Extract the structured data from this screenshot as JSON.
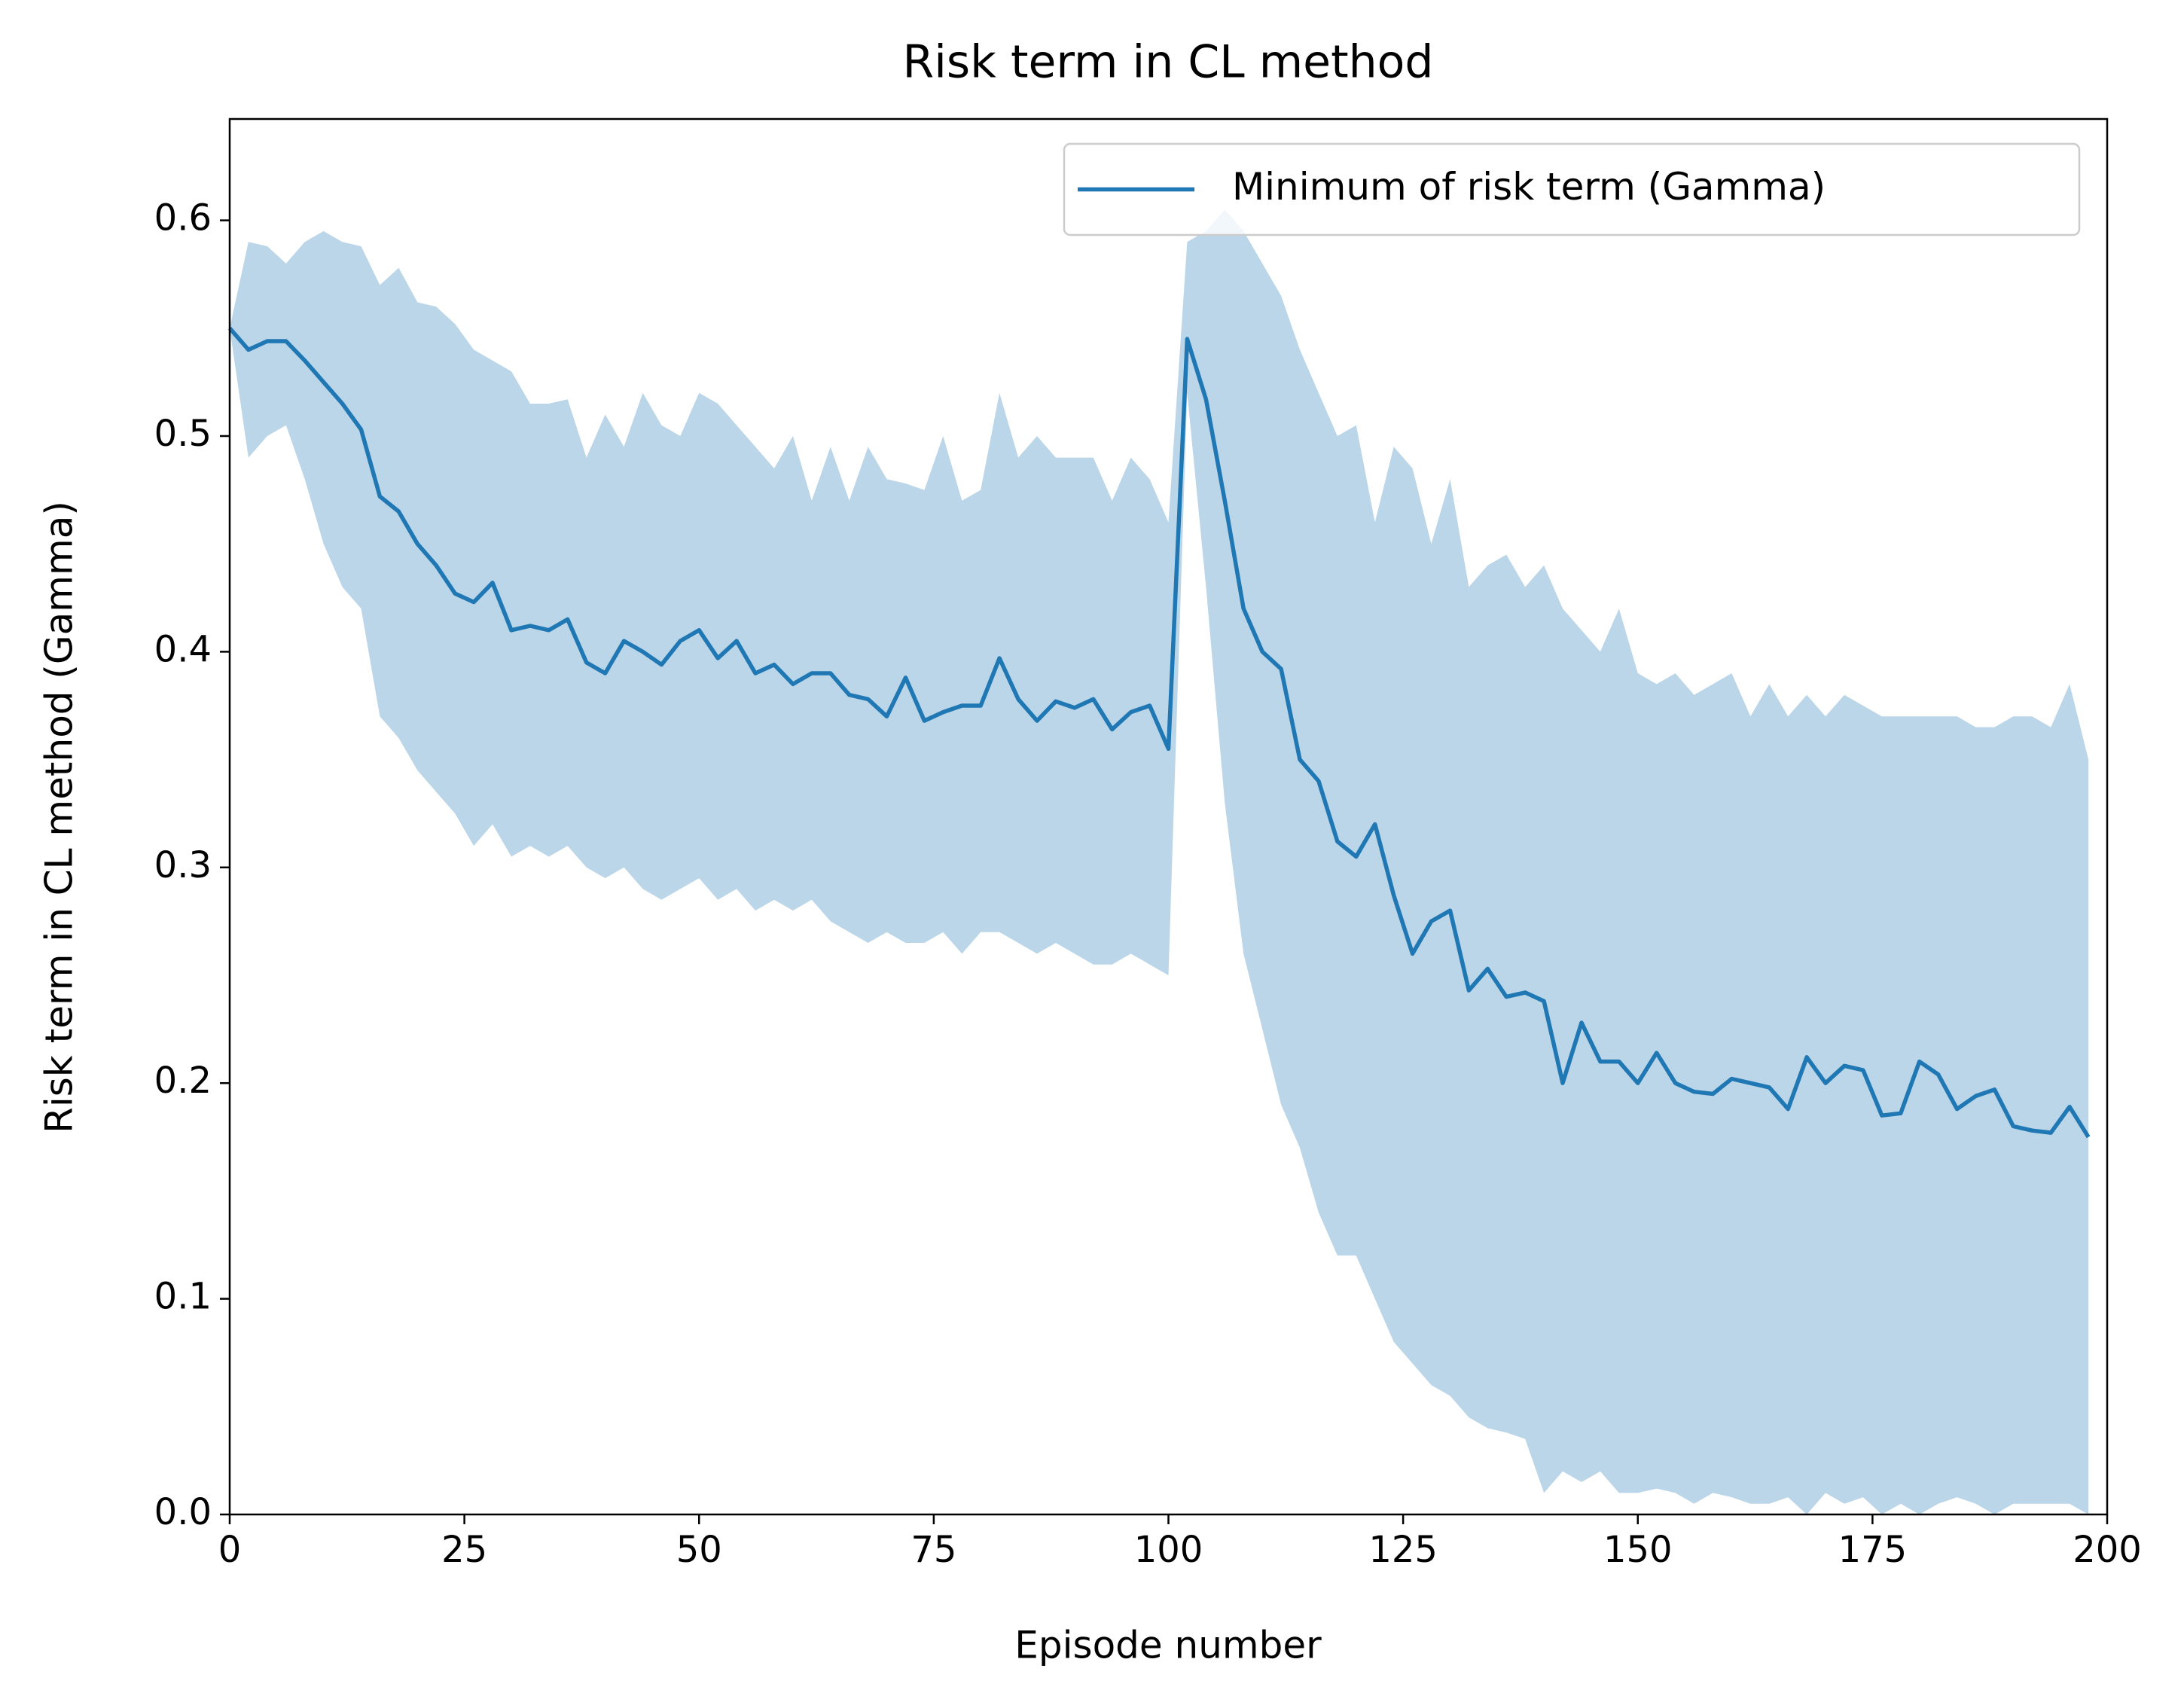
{
  "chart_data": {
    "type": "line",
    "title": "Risk term in CL method",
    "x_label": "Episode number",
    "y_label": "Risk term in CL method (Gamma)",
    "x": [
      0,
      2,
      4,
      6,
      8,
      10,
      12,
      14,
      16,
      18,
      20,
      22,
      24,
      26,
      28,
      30,
      32,
      34,
      36,
      38,
      40,
      42,
      44,
      46,
      48,
      50,
      52,
      54,
      56,
      58,
      60,
      62,
      64,
      66,
      68,
      70,
      72,
      74,
      76,
      78,
      80,
      82,
      84,
      86,
      88,
      90,
      92,
      94,
      96,
      98,
      100,
      102,
      104,
      106,
      108,
      110,
      112,
      114,
      116,
      118,
      120,
      122,
      124,
      126,
      128,
      130,
      132,
      134,
      136,
      138,
      140,
      142,
      144,
      146,
      148,
      150,
      152,
      154,
      156,
      158,
      160,
      162,
      164,
      166,
      168,
      170,
      172,
      174,
      176,
      178,
      180,
      182,
      184,
      186,
      188,
      190,
      192,
      194,
      196,
      198
    ],
    "series": [
      {
        "name": "Minimum of risk term (Gamma)",
        "color": "#1f77b4",
        "values": [
          0.55,
          0.54,
          0.544,
          0.544,
          0.535,
          0.525,
          0.515,
          0.503,
          0.472,
          0.465,
          0.45,
          0.44,
          0.427,
          0.423,
          0.432,
          0.41,
          0.412,
          0.41,
          0.415,
          0.395,
          0.39,
          0.405,
          0.4,
          0.394,
          0.405,
          0.41,
          0.397,
          0.405,
          0.39,
          0.394,
          0.385,
          0.39,
          0.39,
          0.38,
          0.378,
          0.37,
          0.388,
          0.368,
          0.372,
          0.375,
          0.375,
          0.397,
          0.378,
          0.368,
          0.377,
          0.374,
          0.378,
          0.364,
          0.372,
          0.375,
          0.355,
          0.545,
          0.517,
          0.47,
          0.42,
          0.4,
          0.392,
          0.35,
          0.34,
          0.312,
          0.305,
          0.32,
          0.287,
          0.26,
          0.275,
          0.28,
          0.243,
          0.253,
          0.24,
          0.242,
          0.238,
          0.2,
          0.228,
          0.21,
          0.21,
          0.2,
          0.214,
          0.2,
          0.196,
          0.195,
          0.202,
          0.2,
          0.198,
          0.188,
          0.212,
          0.2,
          0.208,
          0.206,
          0.185,
          0.186,
          0.21,
          0.204,
          0.188,
          0.194,
          0.197,
          0.18,
          0.178,
          0.177,
          0.189,
          0.175
        ],
        "band": {
          "upper": [
            0.55,
            0.59,
            0.588,
            0.58,
            0.59,
            0.595,
            0.59,
            0.588,
            0.57,
            0.578,
            0.562,
            0.56,
            0.552,
            0.54,
            0.535,
            0.53,
            0.515,
            0.515,
            0.517,
            0.49,
            0.51,
            0.495,
            0.52,
            0.505,
            0.5,
            0.52,
            0.515,
            0.505,
            0.495,
            0.485,
            0.5,
            0.47,
            0.495,
            0.47,
            0.495,
            0.48,
            0.478,
            0.475,
            0.5,
            0.47,
            0.475,
            0.52,
            0.49,
            0.5,
            0.49,
            0.49,
            0.49,
            0.47,
            0.49,
            0.48,
            0.46,
            0.59,
            0.595,
            0.605,
            0.595,
            0.58,
            0.565,
            0.54,
            0.52,
            0.5,
            0.505,
            0.46,
            0.495,
            0.485,
            0.45,
            0.48,
            0.43,
            0.44,
            0.445,
            0.43,
            0.44,
            0.42,
            0.41,
            0.4,
            0.42,
            0.39,
            0.385,
            0.39,
            0.38,
            0.385,
            0.39,
            0.37,
            0.385,
            0.37,
            0.38,
            0.37,
            0.38,
            0.375,
            0.37,
            0.37,
            0.37,
            0.37,
            0.37,
            0.365,
            0.365,
            0.37,
            0.37,
            0.365,
            0.385,
            0.35
          ],
          "lower": [
            0.55,
            0.49,
            0.5,
            0.505,
            0.48,
            0.45,
            0.43,
            0.42,
            0.37,
            0.36,
            0.345,
            0.335,
            0.325,
            0.31,
            0.32,
            0.305,
            0.31,
            0.305,
            0.31,
            0.3,
            0.295,
            0.3,
            0.29,
            0.285,
            0.29,
            0.295,
            0.285,
            0.29,
            0.28,
            0.285,
            0.28,
            0.285,
            0.275,
            0.27,
            0.265,
            0.27,
            0.265,
            0.265,
            0.27,
            0.26,
            0.27,
            0.27,
            0.265,
            0.26,
            0.265,
            0.26,
            0.255,
            0.255,
            0.26,
            0.255,
            0.25,
            0.52,
            0.43,
            0.33,
            0.26,
            0.225,
            0.19,
            0.17,
            0.14,
            0.12,
            0.12,
            0.1,
            0.08,
            0.07,
            0.06,
            0.055,
            0.045,
            0.04,
            0.038,
            0.035,
            0.01,
            0.02,
            0.015,
            0.02,
            0.01,
            0.01,
            0.012,
            0.01,
            0.005,
            0.01,
            0.008,
            0.005,
            0.005,
            0.008,
            0.0,
            0.01,
            0.005,
            0.008,
            0.0,
            0.005,
            0.0,
            0.005,
            0.008,
            0.005,
            0.0,
            0.005,
            0.005,
            0.005,
            0.005,
            0.0
          ],
          "opacity": 0.3
        }
      }
    ],
    "xlim": [
      0,
      200
    ],
    "ylim": [
      0,
      0.647
    ],
    "xticks": [
      0,
      25,
      50,
      75,
      100,
      125,
      150,
      175,
      200
    ],
    "yticks": [
      {
        "value": 0,
        "label": "0.0"
      },
      0.1,
      0.2,
      0.3,
      0.4,
      0.5,
      0.6
    ],
    "grid": false,
    "legend": "upper right"
  }
}
